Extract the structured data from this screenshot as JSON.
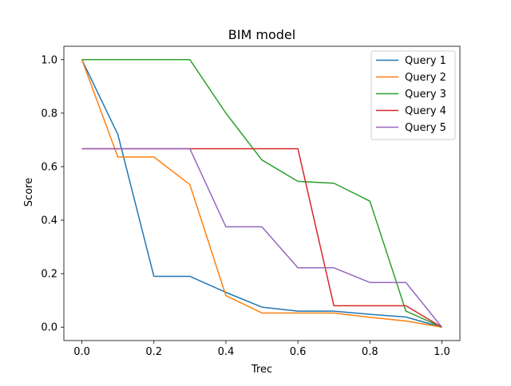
{
  "chart_data": {
    "type": "line",
    "title": "BIM model",
    "xlabel": "Trec",
    "ylabel": "Score",
    "xlim": [
      -0.05,
      1.05
    ],
    "ylim": [
      -0.05,
      1.05
    ],
    "xticks": [
      0.0,
      0.2,
      0.4,
      0.6,
      0.8,
      1.0
    ],
    "xtick_labels": [
      "0.0",
      "0.2",
      "0.4",
      "0.6",
      "0.8",
      "1.0"
    ],
    "yticks": [
      0.0,
      0.2,
      0.4,
      0.6,
      0.8,
      1.0
    ],
    "ytick_labels": [
      "0.0",
      "0.2",
      "0.4",
      "0.6",
      "0.8",
      "1.0"
    ],
    "grid": false,
    "legend_position": "top-right",
    "x": [
      0.0,
      0.1,
      0.2,
      0.3,
      0.4,
      0.5,
      0.6,
      0.7,
      0.8,
      0.9,
      1.0
    ],
    "series": [
      {
        "name": "Query 1",
        "color": "#1f77b4",
        "values": [
          1.0,
          0.72,
          0.19,
          0.19,
          0.13,
          0.075,
          0.06,
          0.06,
          0.048,
          0.038,
          0.0
        ]
      },
      {
        "name": "Query 2",
        "color": "#ff7f0e",
        "values": [
          1.0,
          0.636,
          0.636,
          0.533,
          0.118,
          0.053,
          0.053,
          0.053,
          0.037,
          0.023,
          0.0
        ]
      },
      {
        "name": "Query 3",
        "color": "#2ca02c",
        "values": [
          1.0,
          1.0,
          1.0,
          1.0,
          0.8,
          0.625,
          0.545,
          0.538,
          0.471,
          0.06,
          0.0
        ]
      },
      {
        "name": "Query 4",
        "color": "#d62728",
        "values": [
          0.667,
          0.667,
          0.667,
          0.667,
          0.667,
          0.667,
          0.667,
          0.08,
          0.08,
          0.08,
          0.0
        ]
      },
      {
        "name": "Query 5",
        "color": "#9467bd",
        "values": [
          0.667,
          0.667,
          0.667,
          0.667,
          0.375,
          0.375,
          0.222,
          0.222,
          0.167,
          0.167,
          0.0
        ]
      }
    ]
  }
}
